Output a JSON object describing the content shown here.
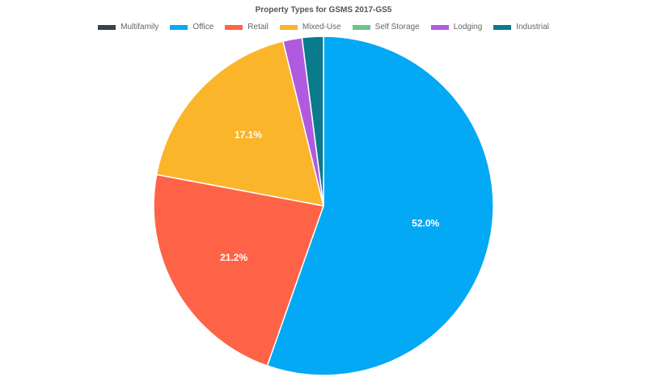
{
  "chart_data": {
    "type": "pie",
    "title": "Property Types for GSMS 2017-GS5",
    "legend_position": "top-center",
    "slices": [
      {
        "name": "Multifamily",
        "value": 0.0,
        "color": "#374151",
        "label": ""
      },
      {
        "name": "Office",
        "value": 52.0,
        "color": "#03a9f4",
        "label": "52.0%"
      },
      {
        "name": "Retail",
        "value": 21.2,
        "color": "#ff6347",
        "label": "21.2%"
      },
      {
        "name": "Mixed-Use",
        "value": 17.1,
        "color": "#fbb52b",
        "label": "17.1%"
      },
      {
        "name": "Self Storage",
        "value": 0.0,
        "color": "#6cc38c",
        "label": ""
      },
      {
        "name": "Lodging",
        "value": 1.7,
        "color": "#b05ae0",
        "label": ""
      },
      {
        "name": "Industrial",
        "value": 1.9,
        "color": "#097b8a",
        "label": ""
      }
    ]
  }
}
